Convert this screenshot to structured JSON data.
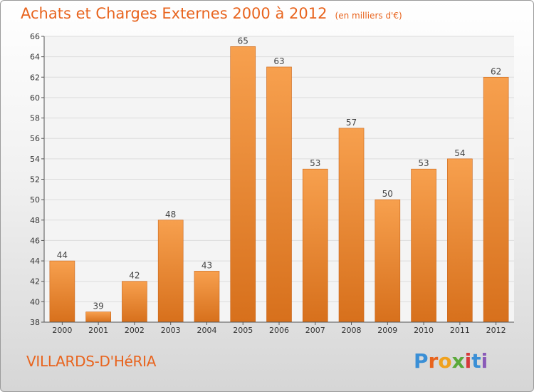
{
  "chart_data": {
    "type": "bar",
    "title": "Achats et Charges Externes 2000 à 2012",
    "unit": "(en milliers d'€)",
    "categories": [
      "2000",
      "2001",
      "2002",
      "2003",
      "2004",
      "2005",
      "2006",
      "2007",
      "2008",
      "2009",
      "2010",
      "2011",
      "2012"
    ],
    "values": [
      44,
      39,
      42,
      48,
      43,
      65,
      63,
      53,
      57,
      50,
      53,
      54,
      62
    ],
    "ylim": [
      38,
      66
    ],
    "yticks": [
      38,
      40,
      42,
      44,
      46,
      48,
      50,
      52,
      54,
      56,
      58,
      60,
      62,
      64,
      66
    ],
    "xlabel": "",
    "ylabel": "",
    "grid": true
  },
  "commune": "VILLARDS-D'HéRIA",
  "brand": {
    "letters": [
      "P",
      "r",
      "o",
      "x",
      "i",
      "t",
      "i"
    ],
    "colors": [
      "#3a8fd6",
      "#e8641e",
      "#f0a21e",
      "#5aa93a",
      "#d63a3a",
      "#3a8fd6",
      "#8a5ab8"
    ]
  },
  "colors": {
    "bar_top": "#f7a04e",
    "bar_bottom": "#d7701c",
    "accent": "#e8641e",
    "grid": "#dcdcdc",
    "plot_bg": "#f4f4f4"
  }
}
